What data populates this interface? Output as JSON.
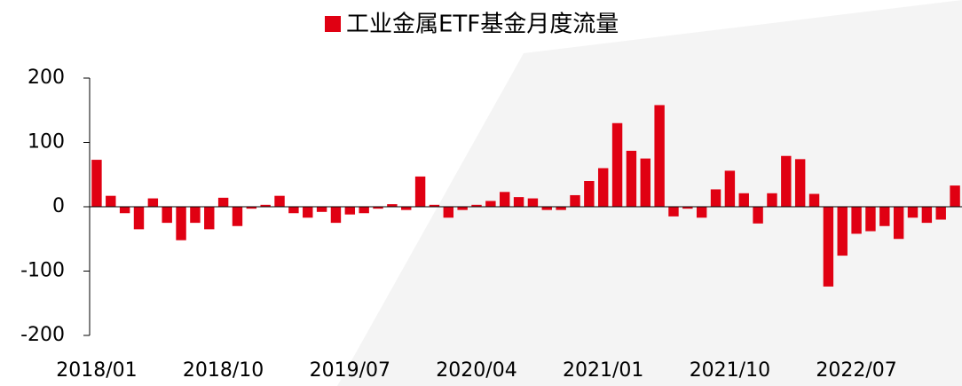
{
  "chart_data": {
    "type": "bar",
    "categories": [
      "2018/01",
      null,
      null,
      null,
      null,
      null,
      null,
      null,
      null,
      "2018/10",
      null,
      null,
      null,
      null,
      null,
      null,
      null,
      null,
      "2019/07",
      null,
      null,
      null,
      null,
      null,
      null,
      null,
      null,
      "2020/04",
      null,
      null,
      null,
      null,
      null,
      null,
      null,
      null,
      "2021/01",
      null,
      null,
      null,
      null,
      null,
      null,
      null,
      null,
      "2021/10",
      null,
      null,
      null,
      null,
      null,
      null,
      null,
      null,
      "2022/07",
      null,
      null,
      null,
      null,
      null,
      null,
      null
    ],
    "series": [
      {
        "name": "工业金属ETF基金月度流量",
        "color": "#e00012",
        "values": [
          73,
          17,
          -10,
          -35,
          13,
          -25,
          -52,
          -25,
          -35,
          14,
          -30,
          -3,
          3,
          17,
          -10,
          -17,
          -8,
          -25,
          -12,
          -10,
          -3,
          4,
          -5,
          47,
          3,
          -17,
          -5,
          3,
          9,
          23,
          15,
          13,
          -5,
          -5,
          18,
          40,
          60,
          130,
          87,
          75,
          158,
          -15,
          -3,
          -17,
          27,
          56,
          21,
          -26,
          21,
          79,
          74,
          20,
          -124,
          -76,
          -42,
          -38,
          -30,
          -50,
          -17,
          -25,
          -20,
          33
        ]
      }
    ],
    "ylim": [
      -200,
      200
    ],
    "yticks": [
      -200,
      -100,
      0,
      100,
      200
    ],
    "legend": "top"
  }
}
